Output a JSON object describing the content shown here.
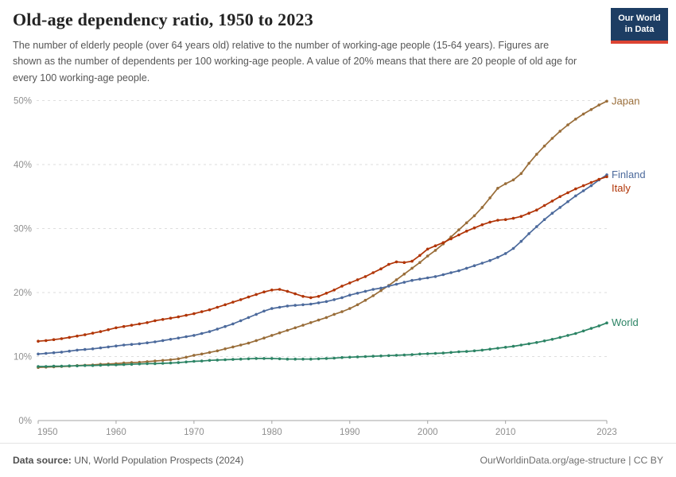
{
  "header": {
    "logo": {
      "line1": "Our World",
      "line2": "in Data"
    }
  },
  "footer": {
    "source_label": "Data source:",
    "source_text": " UN, World Population Prospects (2024)",
    "right_text": "OurWorldinData.org/age-structure | CC BY"
  },
  "chart_data": {
    "type": "line",
    "title": "Old-age dependency ratio, 1950 to 2023",
    "subtitle": "The number of elderly people (over 64 years old) relative to the number of working-age people (15-64 years). Figures are shown as the number of dependents per 100 working-age people. A value of 20% means that there are 20 people of old age for every 100 working-age people.",
    "x_start": 1950,
    "x_end": 2023,
    "x_ticks": [
      1950,
      1960,
      1970,
      1980,
      1990,
      2000,
      2010,
      2023
    ],
    "y_ticks": [
      0,
      10,
      20,
      30,
      40,
      50
    ],
    "y_tick_suffix": "%",
    "ylim": [
      0,
      50
    ],
    "grid": "horizontal-dashed",
    "legend_position": "line-end-labels",
    "axis_color": "#a3a3a3",
    "grid_color": "#dedede",
    "tick_label_color": "#8f8f8f",
    "series": [
      {
        "name": "Japan",
        "color": "#996D39",
        "values": [
          8.3,
          8.35,
          8.4,
          8.45,
          8.5,
          8.6,
          8.65,
          8.7,
          8.8,
          8.85,
          8.9,
          9.0,
          9.05,
          9.1,
          9.2,
          9.3,
          9.4,
          9.5,
          9.65,
          9.9,
          10.2,
          10.4,
          10.65,
          10.9,
          11.2,
          11.5,
          11.8,
          12.1,
          12.5,
          12.9,
          13.3,
          13.7,
          14.1,
          14.5,
          14.9,
          15.3,
          15.7,
          16.1,
          16.6,
          17.0,
          17.5,
          18.1,
          18.8,
          19.5,
          20.3,
          21.1,
          22.0,
          22.9,
          23.8,
          24.7,
          25.7,
          26.6,
          27.6,
          28.7,
          29.8,
          30.9,
          32.0,
          33.3,
          34.8,
          36.3,
          37.0,
          37.6,
          38.6,
          40.2,
          41.6,
          42.9,
          44.1,
          45.2,
          46.2,
          47.1,
          47.9,
          48.6,
          49.3,
          49.9
        ]
      },
      {
        "name": "Finland",
        "color": "#4C6A9C",
        "values": [
          10.4,
          10.5,
          10.6,
          10.7,
          10.85,
          11.0,
          11.1,
          11.2,
          11.35,
          11.5,
          11.65,
          11.8,
          11.9,
          12.0,
          12.15,
          12.3,
          12.5,
          12.7,
          12.9,
          13.1,
          13.3,
          13.6,
          13.9,
          14.3,
          14.7,
          15.1,
          15.6,
          16.1,
          16.6,
          17.1,
          17.5,
          17.7,
          17.9,
          18.0,
          18.1,
          18.2,
          18.4,
          18.6,
          18.9,
          19.2,
          19.6,
          19.9,
          20.2,
          20.5,
          20.7,
          21.0,
          21.3,
          21.6,
          21.9,
          22.1,
          22.3,
          22.5,
          22.8,
          23.1,
          23.4,
          23.8,
          24.2,
          24.6,
          25.0,
          25.5,
          26.1,
          26.9,
          28.0,
          29.2,
          30.3,
          31.4,
          32.4,
          33.3,
          34.2,
          35.1,
          35.9,
          36.7,
          37.6,
          38.4
        ]
      },
      {
        "name": "Italy",
        "color": "#B13507",
        "values": [
          12.4,
          12.5,
          12.65,
          12.8,
          13.0,
          13.2,
          13.4,
          13.65,
          13.9,
          14.2,
          14.5,
          14.7,
          14.9,
          15.1,
          15.3,
          15.6,
          15.8,
          16.0,
          16.2,
          16.45,
          16.7,
          17.0,
          17.3,
          17.7,
          18.1,
          18.5,
          18.9,
          19.3,
          19.7,
          20.1,
          20.4,
          20.5,
          20.2,
          19.8,
          19.4,
          19.2,
          19.4,
          19.9,
          20.4,
          21.0,
          21.5,
          22.0,
          22.5,
          23.1,
          23.7,
          24.4,
          24.8,
          24.7,
          24.9,
          25.8,
          26.8,
          27.3,
          27.8,
          28.4,
          29.0,
          29.6,
          30.1,
          30.6,
          31.0,
          31.3,
          31.4,
          31.6,
          31.9,
          32.4,
          32.9,
          33.6,
          34.3,
          35.0,
          35.6,
          36.2,
          36.7,
          37.2,
          37.7,
          38.1
        ]
      },
      {
        "name": "World",
        "color": "#2C8465",
        "values": [
          8.45,
          8.45,
          8.5,
          8.5,
          8.55,
          8.55,
          8.6,
          8.6,
          8.65,
          8.7,
          8.7,
          8.75,
          8.8,
          8.85,
          8.9,
          8.9,
          8.95,
          9.0,
          9.05,
          9.15,
          9.25,
          9.3,
          9.4,
          9.45,
          9.5,
          9.55,
          9.6,
          9.65,
          9.7,
          9.7,
          9.7,
          9.65,
          9.6,
          9.6,
          9.6,
          9.6,
          9.65,
          9.7,
          9.75,
          9.85,
          9.9,
          9.95,
          10.0,
          10.05,
          10.1,
          10.15,
          10.2,
          10.25,
          10.3,
          10.4,
          10.45,
          10.5,
          10.55,
          10.65,
          10.75,
          10.8,
          10.9,
          11.0,
          11.15,
          11.3,
          11.45,
          11.6,
          11.8,
          12.0,
          12.2,
          12.45,
          12.7,
          13.0,
          13.3,
          13.6,
          14.0,
          14.4,
          14.8,
          15.25
        ]
      }
    ]
  }
}
